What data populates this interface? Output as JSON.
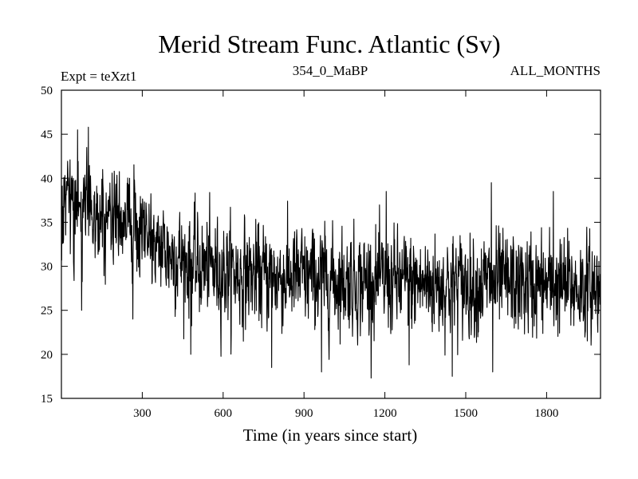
{
  "chart_data": {
    "type": "line",
    "title": "Merid Stream Func. Atlantic (Sv)",
    "subtitle_left": "Expt = teXzt1",
    "subtitle_center": "354_0_MaBP",
    "subtitle_right": "ALL_MONTHS",
    "xlabel": "Time (in years since start)",
    "ylabel": "",
    "xlim": [
      0,
      2000
    ],
    "ylim": [
      15,
      50
    ],
    "x_ticks": [
      300,
      600,
      900,
      1200,
      1500,
      1800
    ],
    "y_ticks": [
      15,
      20,
      25,
      30,
      35,
      40,
      45,
      50
    ],
    "grid": false,
    "line_color": "#000000",
    "series": [
      {
        "name": "Merid Stream Func. Atlantic",
        "n_points": 2000,
        "trend_anchors": {
          "x": [
            0,
            100,
            200,
            300,
            400,
            500,
            700,
            1000,
            1300,
            1600,
            2000
          ],
          "y": [
            37,
            36.5,
            35.5,
            34,
            31.5,
            30,
            29,
            28.5,
            28,
            28,
            27.5
          ]
        },
        "notable_points": [
          {
            "x": 60,
            "y": 45.5
          },
          {
            "x": 100,
            "y": 45.8
          },
          {
            "x": 75,
            "y": 25
          },
          {
            "x": 265,
            "y": 24
          },
          {
            "x": 480,
            "y": 20
          },
          {
            "x": 780,
            "y": 18.5
          },
          {
            "x": 965,
            "y": 18
          },
          {
            "x": 1205,
            "y": 38.5
          },
          {
            "x": 1290,
            "y": 18.8
          },
          {
            "x": 1450,
            "y": 17.5
          },
          {
            "x": 1595,
            "y": 39.5
          },
          {
            "x": 1600,
            "y": 18
          },
          {
            "x": 1825,
            "y": 38.5
          },
          {
            "x": 1990,
            "y": 22.5
          }
        ]
      }
    ]
  }
}
